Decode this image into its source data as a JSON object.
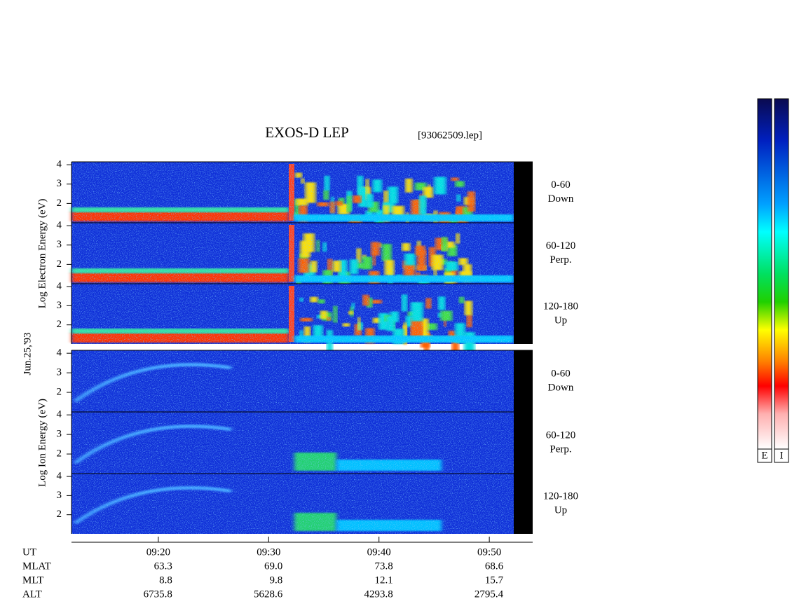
{
  "header": {
    "title": "EXOS-D LEP",
    "file": "[93062509.lep]"
  },
  "date": "Jun.25,'93",
  "electron": {
    "axis_label": "Log Electron Energy (eV)",
    "ylim": [
      1,
      4.15
    ],
    "yticks": [
      2,
      3,
      4
    ],
    "panels": [
      {
        "pitch": "0-60",
        "direction": "Down"
      },
      {
        "pitch": "60-120",
        "direction": "Perp."
      },
      {
        "pitch": "120-180",
        "direction": "Up"
      }
    ]
  },
  "ion": {
    "axis_label": "Log Ion Energy (eV)",
    "ylim": [
      1,
      4.15
    ],
    "yticks": [
      2,
      3,
      4
    ],
    "panels": [
      {
        "pitch": "0-60",
        "direction": "Down"
      },
      {
        "pitch": "60-120",
        "direction": "Perp."
      },
      {
        "pitch": "120-180",
        "direction": "Up"
      }
    ]
  },
  "time_axis": {
    "label": "UT",
    "xlim": [
      552.13,
      593.93
    ],
    "xticks": [
      {
        "value": 560,
        "label": "09:20"
      },
      {
        "value": 570,
        "label": "09:30"
      },
      {
        "value": 580,
        "label": "09:40"
      },
      {
        "value": 590,
        "label": "09:50"
      }
    ]
  },
  "ephemeris": [
    {
      "label": "MLAT",
      "values": [
        "63.3",
        "69.0",
        "73.8",
        "68.6"
      ]
    },
    {
      "label": "MLT",
      "values": [
        "8.8",
        "9.8",
        "12.1",
        "15.7"
      ]
    },
    {
      "label": "ALT",
      "values": [
        "6735.8",
        "5628.6",
        "4293.8",
        "2795.4"
      ]
    }
  ],
  "colorbars": [
    "E",
    "I"
  ]
}
